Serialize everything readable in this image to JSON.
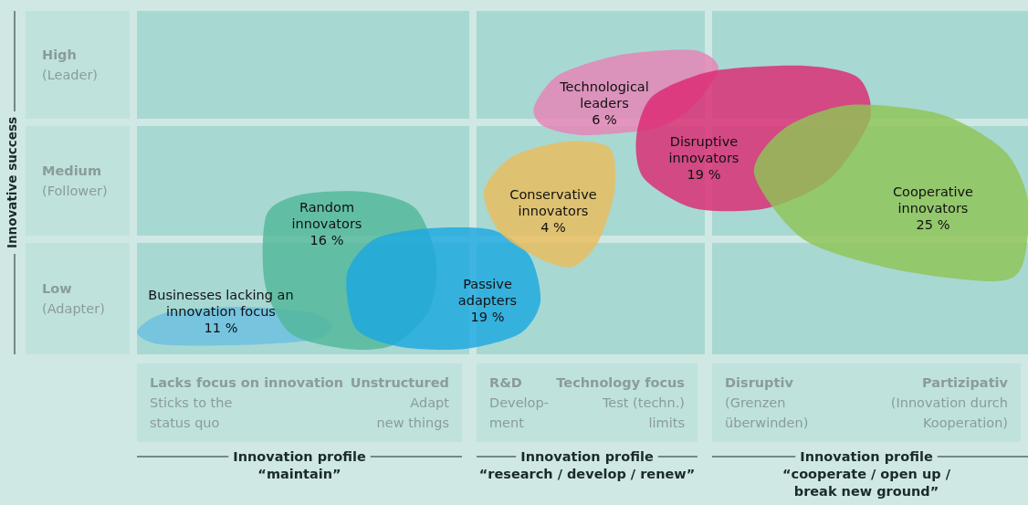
{
  "chart_data": {
    "type": "other",
    "ylabel": "Innovative success",
    "y_categories": [
      "High\n(Leader)",
      "Medium\n(Follower)",
      "Low\n(Adapter)"
    ],
    "annotations": [
      "Lacks focus on innovation\nSticks to the\nstatus quo",
      "Unstructured\nAdapt\nnew things",
      "R&D\nDevelop-\nment",
      "Technology focus\nTest (techn.)\nlimits",
      "Disruptiv\n(Grenzen\nüberwinden)",
      "Partizipativ\n(Innovation durch\nKooperation)",
      "Innovation profile\n“maintain”",
      "Innovation profile\n“research / develop / renew”",
      "Innovation profile\n“cooperate / open up /\nbreak new ground”"
    ],
    "series": [
      {
        "name": "Businesses lacking an\ninnovation focus",
        "color": "#6cbfe2",
        "values": [
          11
        ],
        "value_labels": [
          "11 %"
        ]
      },
      {
        "name": "Random\ninnovators",
        "color": "#52b89a",
        "values": [
          16
        ],
        "value_labels": [
          "16 %"
        ]
      },
      {
        "name": "Passive\nadapters",
        "color": "#1ca8e0",
        "values": [
          19
        ],
        "value_labels": [
          "19 %"
        ]
      },
      {
        "name": "Conservative\ninnovators",
        "color": "#eabd5c",
        "values": [
          4
        ],
        "value_labels": [
          "4 %"
        ]
      },
      {
        "name": "Technological\nleaders",
        "color": "#e783b6",
        "values": [
          6
        ],
        "value_labels": [
          "6 %"
        ]
      },
      {
        "name": "Disruptive\ninnovators",
        "color": "#dc2a72",
        "values": [
          19
        ],
        "value_labels": [
          "19 %"
        ]
      },
      {
        "name": "Cooperative\ninnovators",
        "color": "#8fc556",
        "values": [
          25
        ],
        "value_labels": [
          "25 %"
        ]
      }
    ]
  }
}
